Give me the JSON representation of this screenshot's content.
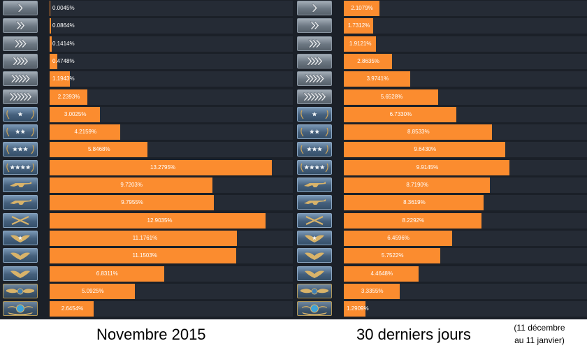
{
  "chart_data": [
    {
      "type": "bar",
      "orientation": "horizontal",
      "title": "Novembre 2015",
      "xlim": [
        0,
        15
      ],
      "categories": [
        "S1",
        "S2",
        "S3",
        "S4",
        "S5",
        "SEM",
        "GN1",
        "GN2",
        "GN3",
        "GNM",
        "MG1",
        "MG2",
        "MGE",
        "DMG",
        "LE",
        "LEM",
        "SMFC",
        "GE"
      ],
      "values": [
        0.0045,
        0.0864,
        0.1414,
        0.4748,
        1.1943,
        2.2393,
        3.0025,
        4.2159,
        5.8468,
        13.2795,
        9.7203,
        9.7955,
        12.9035,
        11.1761,
        11.1503,
        6.8311,
        5.0925,
        2.6454
      ],
      "labels": [
        "0.0045%",
        "0.0864%",
        "0.1414%",
        "0.4748%",
        "1.1943%",
        "2.2393%",
        "3.0025%",
        "4.2159%",
        "5.8468%",
        "13.2795%",
        "9.7203%",
        "9.7955%",
        "12.9035%",
        "11.1761%",
        "11.1503%",
        "6.8311%",
        "5.0925%",
        "2.6454%"
      ]
    },
    {
      "type": "bar",
      "orientation": "horizontal",
      "title": "30 derniers jours",
      "subtitle": "(11 décembre au 11 janvier)",
      "xlim": [
        0,
        15
      ],
      "categories": [
        "S1",
        "S2",
        "S3",
        "S4",
        "S5",
        "SEM",
        "GN1",
        "GN2",
        "GN3",
        "GNM",
        "MG1",
        "MG2",
        "MGE",
        "DMG",
        "LE",
        "LEM",
        "SMFC",
        "GE"
      ],
      "values": [
        2.1079,
        1.7312,
        1.9121,
        2.8635,
        3.9741,
        5.6528,
        6.733,
        8.8533,
        9.643,
        9.9145,
        8.719,
        8.3619,
        8.2292,
        6.4596,
        5.7522,
        4.4648,
        3.3355,
        1.2909
      ],
      "labels": [
        "2.1079%",
        "1.7312%",
        "1.9121%",
        "2.8635%",
        "3.9741%",
        "5.6528%",
        "6.7330%",
        "8.8533%",
        "9.6430%",
        "9.9145%",
        "8.7190%",
        "8.3619%",
        "8.2292%",
        "6.4596%",
        "5.7522%",
        "4.4648%",
        "3.3355%",
        "1.2909%"
      ]
    }
  ],
  "captions": {
    "left": "Novembre 2015",
    "right": "30 derniers jours",
    "note_line1": "(11 décembre",
    "note_line2": "au 11 janvier)"
  },
  "colors": {
    "bar": "#fb8c2f",
    "track": "#252b35",
    "panel": "#1b2028"
  },
  "rank_icons": [
    "chevron-1-icon",
    "chevron-2-icon",
    "chevron-3-icon",
    "chevron-4-icon",
    "chevron-5-icon",
    "chevron-6-icon",
    "star-1-icon",
    "star-2-icon",
    "star-3-icon",
    "star-4-icon",
    "rifle-icon",
    "rifle-icon",
    "crossed-rifles-icon",
    "eagle-star-icon",
    "eagle-icon",
    "eagle-icon",
    "winged-emblem-icon",
    "globe-icon"
  ]
}
